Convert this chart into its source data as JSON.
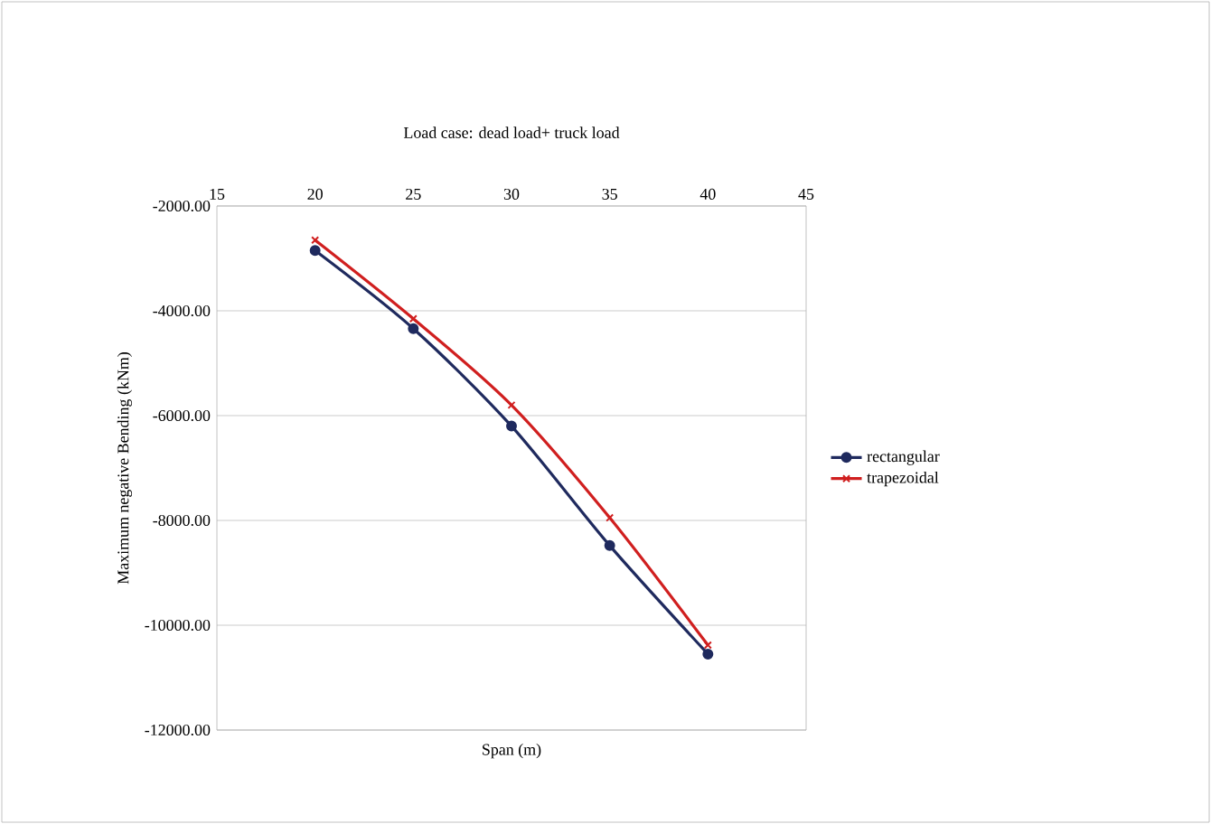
{
  "chart_data": {
    "type": "line",
    "title": "Load case:  dead load+ truck load",
    "xlabel": "Span (m)",
    "ylabel": "Maximum negative  Bending (kNm)",
    "x": [
      20,
      25,
      30,
      35,
      40
    ],
    "series": [
      {
        "name": "rectangular",
        "color": "#1f2a5e",
        "marker": "circle",
        "values": [
          -2850,
          -4340,
          -6200,
          -8480,
          -10550
        ]
      },
      {
        "name": "trapezoidal",
        "color": "#d01f1f",
        "marker": "cross",
        "values": [
          -2650,
          -4150,
          -5800,
          -7950,
          -10380
        ]
      }
    ],
    "xlim": [
      15,
      45
    ],
    "xticks": [
      15,
      20,
      25,
      30,
      35,
      40,
      45
    ],
    "ylim": [
      -12000,
      -2000
    ],
    "yticks": [
      {
        "value": -12000,
        "label": "-12000.00"
      },
      {
        "value": -10000,
        "label": "-10000.00"
      },
      {
        "value": -8000,
        "label": "-8000.00"
      },
      {
        "value": -6000,
        "label": "-6000.00"
      },
      {
        "value": -4000,
        "label": "-4000.00"
      },
      {
        "value": -2000,
        "label": "-2000.00"
      }
    ],
    "grid": "y",
    "legend": "right",
    "line_style": "solid"
  }
}
